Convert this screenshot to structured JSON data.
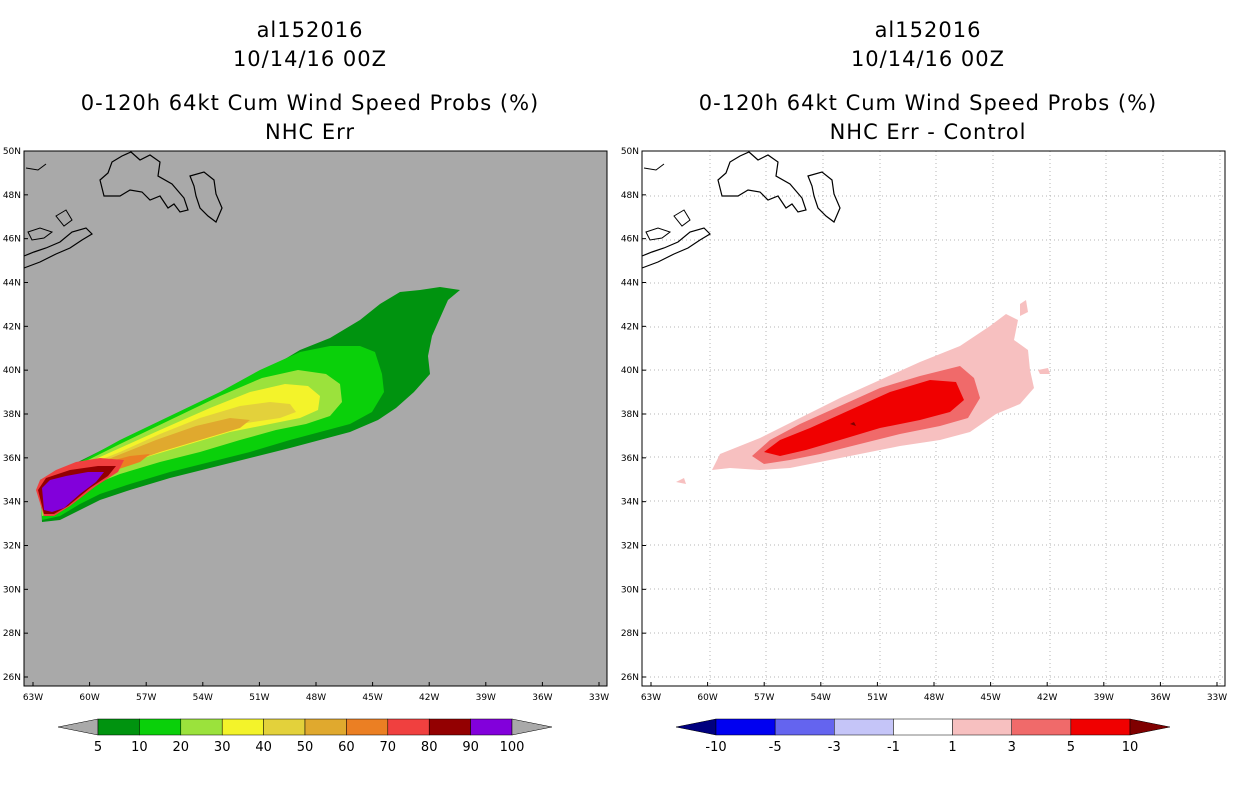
{
  "left_panel": {
    "title": "al152016",
    "date": "10/14/16 00Z",
    "subtitle": "0-120h 64kt Cum Wind Speed Probs (%)",
    "field": "NHC Err",
    "colorbar": {
      "labels": [
        "5",
        "10",
        "20",
        "30",
        "40",
        "50",
        "60",
        "70",
        "80",
        "90",
        "100"
      ],
      "colors": [
        "#a9a9a9",
        "#00930f",
        "#0ad00a",
        "#9be23c",
        "#f3f32a",
        "#e3d13b",
        "#e0a92e",
        "#eb7f23",
        "#f0403f",
        "#930001",
        "#8200db",
        "#a9a9a9"
      ]
    }
  },
  "right_panel": {
    "title": "al152016",
    "date": "10/14/16 00Z",
    "subtitle": "0-120h 64kt Cum Wind Speed Probs (%)",
    "field": "NHC Err - Control",
    "colorbar": {
      "labels": [
        "-10",
        "-5",
        "-3",
        "-1",
        "1",
        "3",
        "5",
        "10"
      ],
      "colors": [
        "#00007f",
        "#0000f1",
        "#6464ef",
        "#c5c5f8",
        "#ffffff",
        "#f7c0c0",
        "#f06a6a",
        "#f00000",
        "#7f0000"
      ]
    }
  },
  "axes": {
    "lon_labels": [
      "63W",
      "60W",
      "57W",
      "54W",
      "51W",
      "48W",
      "45W",
      "42W",
      "39W",
      "36W",
      "33W"
    ],
    "lat_labels": [
      "50N",
      "48N",
      "46N",
      "44N",
      "42N",
      "40N",
      "38N",
      "36N",
      "34N",
      "32N",
      "30N",
      "28N",
      "26N"
    ]
  }
}
